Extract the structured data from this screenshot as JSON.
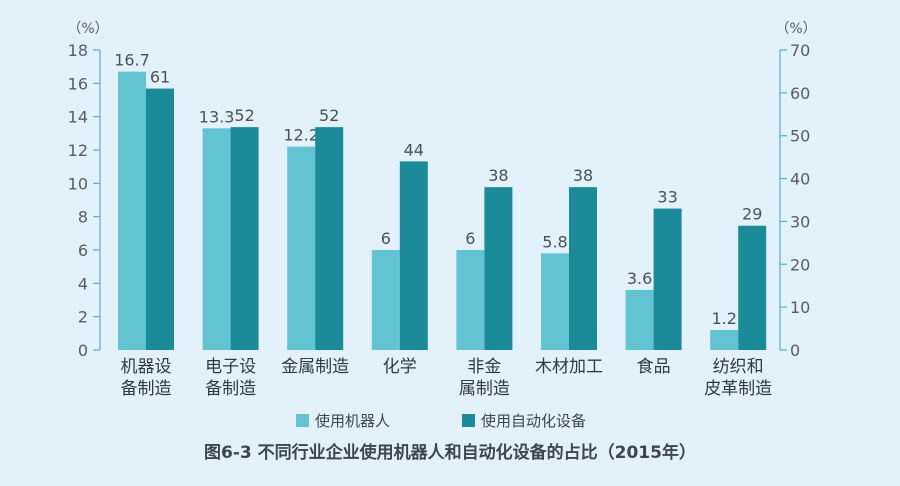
{
  "chart_data": {
    "type": "bar",
    "title": "图6-3 不同行业企业使用机器人和自动化设备的占比（2015年）",
    "categories": [
      [
        "机器设",
        "备制造"
      ],
      [
        "电子设",
        "备制造"
      ],
      [
        "金属制造"
      ],
      [
        "化学"
      ],
      [
        "非金",
        "属制造"
      ],
      [
        "木材加工"
      ],
      [
        "食品"
      ],
      [
        "纺织和",
        "皮革制造"
      ]
    ],
    "series": [
      {
        "name": "使用机器人",
        "axis": "left",
        "color": "#62c3d3",
        "values": [
          16.7,
          13.3,
          12.2,
          6,
          6,
          5.8,
          3.6,
          1.2
        ],
        "labels": [
          "16.7",
          "13.3",
          "12.2",
          "6",
          "6",
          "5.8",
          "3.6",
          "1.2"
        ]
      },
      {
        "name": "使用自动化设备",
        "axis": "right",
        "color": "#1b8b99",
        "values": [
          61,
          52,
          52,
          44,
          38,
          38,
          33,
          29
        ],
        "labels": [
          "61",
          "52",
          "52",
          "44",
          "38",
          "38",
          "33",
          "29"
        ]
      }
    ],
    "y_left": {
      "unit": "（%）",
      "ylim": [
        0,
        18
      ],
      "ticks": [
        0,
        2,
        4,
        6,
        8,
        10,
        12,
        14,
        16,
        18
      ],
      "tick_labels": [
        "0",
        "2",
        "4",
        "6",
        "8",
        "10",
        "12",
        "14",
        "16",
        "18"
      ]
    },
    "y_right": {
      "unit": "（%）",
      "ylim": [
        0,
        70
      ],
      "ticks": [
        0,
        10,
        20,
        30,
        40,
        50,
        60,
        70
      ],
      "tick_labels": [
        "0",
        "10",
        "20",
        "30",
        "40",
        "50",
        "60",
        "70"
      ]
    },
    "legend": {
      "position": "bottom"
    },
    "grid": false,
    "background": "#e3f1fa",
    "axis_color": "#4cb6c4"
  }
}
